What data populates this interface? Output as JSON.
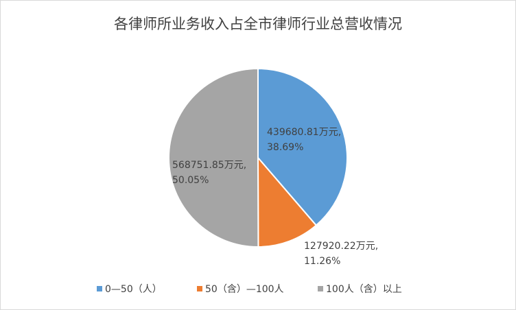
{
  "chart_data": {
    "type": "pie",
    "title": "各律师所业务收入占全市律师行业总营收情况",
    "categories": [
      "0—50（人）",
      "50（含）—100人",
      "100人（含）以上"
    ],
    "values": [
      439680.81,
      127920.22,
      568751.85
    ],
    "value_labels": [
      "439680.81万元, 38.69%",
      "127920.22万元, 11.26%",
      "568751.85万元, 50.05%"
    ],
    "colors": [
      "#5b9bd5",
      "#ed7d31",
      "#a5a5a5"
    ],
    "legend": "bottom"
  }
}
